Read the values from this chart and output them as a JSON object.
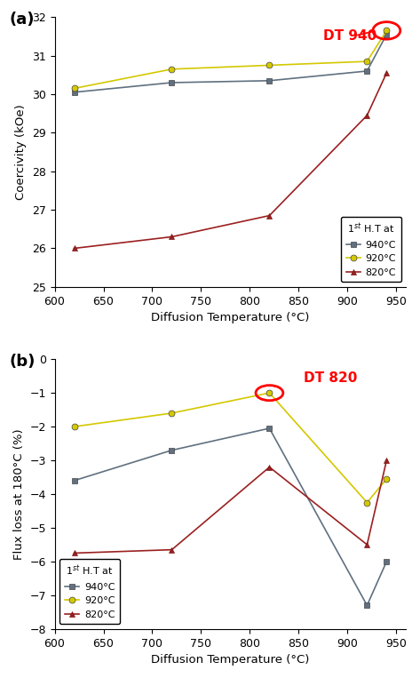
{
  "x_values": [
    620,
    720,
    820,
    920,
    940
  ],
  "coercivity": {
    "940C": [
      30.05,
      30.3,
      30.35,
      30.6,
      31.55
    ],
    "920C": [
      30.15,
      30.65,
      30.75,
      30.85,
      31.65
    ],
    "820C": [
      26.0,
      26.3,
      26.85,
      29.45,
      30.55
    ]
  },
  "flux_loss": {
    "940C": [
      -3.6,
      -2.7,
      -2.05,
      -7.3,
      -6.0
    ],
    "920C": [
      -2.0,
      -1.6,
      -1.0,
      -4.25,
      -3.55
    ],
    "820C": [
      -5.75,
      -5.65,
      -3.2,
      -5.5,
      -3.0
    ]
  },
  "colors": {
    "940C": "#607080",
    "920C": "#D4C800",
    "820C": "#9B2020"
  },
  "ylabel_a": "Coercivity (kOe)",
  "ylabel_b": "Flux loss at 180°C (%)",
  "xlabel": "Diffusion Temperature (°C)",
  "ylim_a": [
    25,
    32
  ],
  "ylim_b": [
    -8,
    0
  ],
  "yticks_a": [
    25,
    26,
    27,
    28,
    29,
    30,
    31,
    32
  ],
  "yticks_b": [
    0,
    -1,
    -2,
    -3,
    -4,
    -5,
    -6,
    -7,
    -8
  ],
  "xlim": [
    600,
    960
  ],
  "xticks": [
    600,
    650,
    700,
    750,
    800,
    850,
    900,
    950
  ],
  "legend_title": "1$^{st}$ H.T at",
  "label_a": "(a)",
  "label_b": "(b)"
}
